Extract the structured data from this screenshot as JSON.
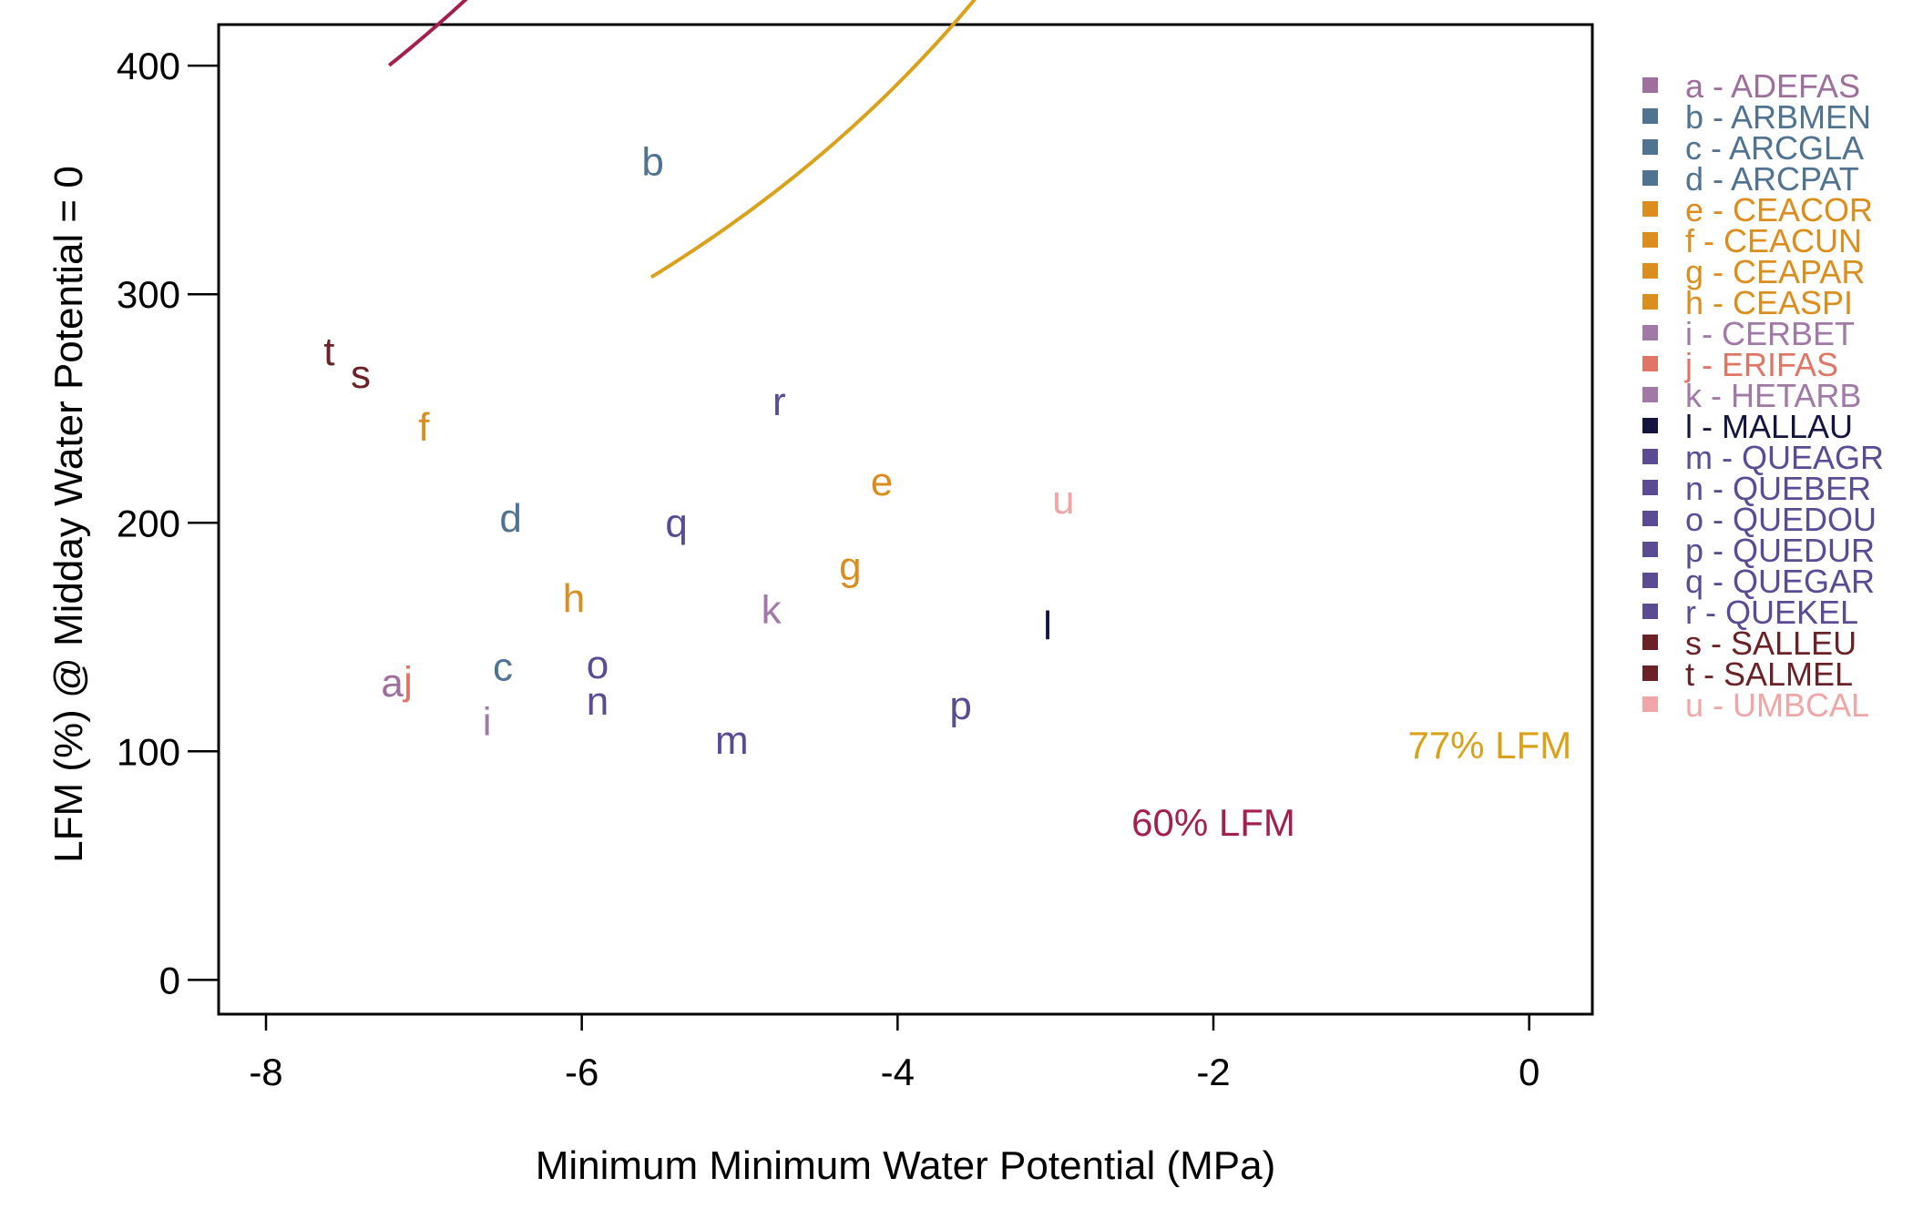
{
  "chart_data": {
    "type": "scatter",
    "xlabel": "Minimum Minimum Water Potential (MPa)",
    "ylabel": "LFM (%) @ Midday Water Potential = 0",
    "xlim": [
      -8.3,
      0.4
    ],
    "ylim": [
      -15,
      418
    ],
    "xticks": [
      -8,
      -6,
      -4,
      -2,
      0
    ],
    "yticks": [
      0,
      100,
      200,
      300,
      400
    ],
    "xtick_labels": [
      "-8",
      "-6",
      "-4",
      "-2",
      "0"
    ],
    "ytick_labels": [
      "0",
      "100",
      "200",
      "300",
      "400"
    ],
    "grid": false,
    "legend_position": "right",
    "points": [
      {
        "label": "a",
        "x": -7.2,
        "y": 130,
        "color": "#9E6F9C"
      },
      {
        "label": "b",
        "x": -5.55,
        "y": 358,
        "color": "#4F7391"
      },
      {
        "label": "c",
        "x": -6.5,
        "y": 137,
        "color": "#4F7391"
      },
      {
        "label": "d",
        "x": -6.45,
        "y": 202,
        "color": "#4F7391"
      },
      {
        "label": "e",
        "x": -4.1,
        "y": 218,
        "color": "#DB8E1E"
      },
      {
        "label": "f",
        "x": -7.0,
        "y": 242,
        "color": "#DB8E1E"
      },
      {
        "label": "g",
        "x": -4.3,
        "y": 181,
        "color": "#DB8E1E"
      },
      {
        "label": "h",
        "x": -6.05,
        "y": 167,
        "color": "#DB8E1E"
      },
      {
        "label": "i",
        "x": -6.6,
        "y": 113,
        "color": "#A079A7"
      },
      {
        "label": "j",
        "x": -7.1,
        "y": 131,
        "color": "#E07566"
      },
      {
        "label": "k",
        "x": -4.8,
        "y": 162,
        "color": "#A079A7"
      },
      {
        "label": "l",
        "x": -3.05,
        "y": 155,
        "color": "#141440"
      },
      {
        "label": "m",
        "x": -5.05,
        "y": 105,
        "color": "#5B4B94"
      },
      {
        "label": "n",
        "x": -5.9,
        "y": 122,
        "color": "#5B4B94"
      },
      {
        "label": "o",
        "x": -5.9,
        "y": 138,
        "color": "#5B4B94"
      },
      {
        "label": "p",
        "x": -3.6,
        "y": 120,
        "color": "#5B4B94"
      },
      {
        "label": "q",
        "x": -5.4,
        "y": 200,
        "color": "#5B4B94"
      },
      {
        "label": "r",
        "x": -4.75,
        "y": 253,
        "color": "#5B4B94"
      },
      {
        "label": "s",
        "x": -7.4,
        "y": 265,
        "color": "#6B2226"
      },
      {
        "label": "t",
        "x": -7.6,
        "y": 275,
        "color": "#6B2226"
      },
      {
        "label": "u",
        "x": -2.95,
        "y": 210,
        "color": "#F0A6A6"
      }
    ],
    "curves": [
      {
        "name": "60% LFM",
        "k": 0.6,
        "x_range": [
          -7.22,
          -1.92
        ],
        "color": "#A3204E",
        "label_x": -2.0,
        "label_y": 63
      },
      {
        "name": "77% LFM",
        "k": 0.77,
        "x_range": [
          -5.56,
          -0.25
        ],
        "color": "#D9A21A",
        "label_x": -0.25,
        "label_y": 97
      }
    ],
    "legend": [
      {
        "text": "a - ADEFAS",
        "color": "#9E6F9C"
      },
      {
        "text": "b - ARBMEN",
        "color": "#4F7391"
      },
      {
        "text": "c - ARCGLA",
        "color": "#4F7391"
      },
      {
        "text": "d - ARCPAT",
        "color": "#4F7391"
      },
      {
        "text": "e - CEACOR",
        "color": "#DB8E1E"
      },
      {
        "text": "f - CEACUN",
        "color": "#DB8E1E"
      },
      {
        "text": "g - CEAPAR",
        "color": "#DB8E1E"
      },
      {
        "text": "h - CEASPI",
        "color": "#DB8E1E"
      },
      {
        "text": "i - CERBET",
        "color": "#A079A7"
      },
      {
        "text": "j - ERIFAS",
        "color": "#E07566"
      },
      {
        "text": "k - HETARB",
        "color": "#A079A7"
      },
      {
        "text": "l - MALLAU",
        "color": "#141440"
      },
      {
        "text": "m - QUEAGR",
        "color": "#5B4B94"
      },
      {
        "text": "n - QUEBER",
        "color": "#5B4B94"
      },
      {
        "text": "o - QUEDOU",
        "color": "#5B4B94"
      },
      {
        "text": "p - QUEDUR",
        "color": "#5B4B94"
      },
      {
        "text": "q - QUEGAR",
        "color": "#5B4B94"
      },
      {
        "text": "r - QUEKEL",
        "color": "#5B4B94"
      },
      {
        "text": "s - SALLEU",
        "color": "#6B2226"
      },
      {
        "text": "t - SALMEL",
        "color": "#6B2226"
      },
      {
        "text": "u - UMBCAL",
        "color": "#F0A6A6"
      }
    ]
  }
}
